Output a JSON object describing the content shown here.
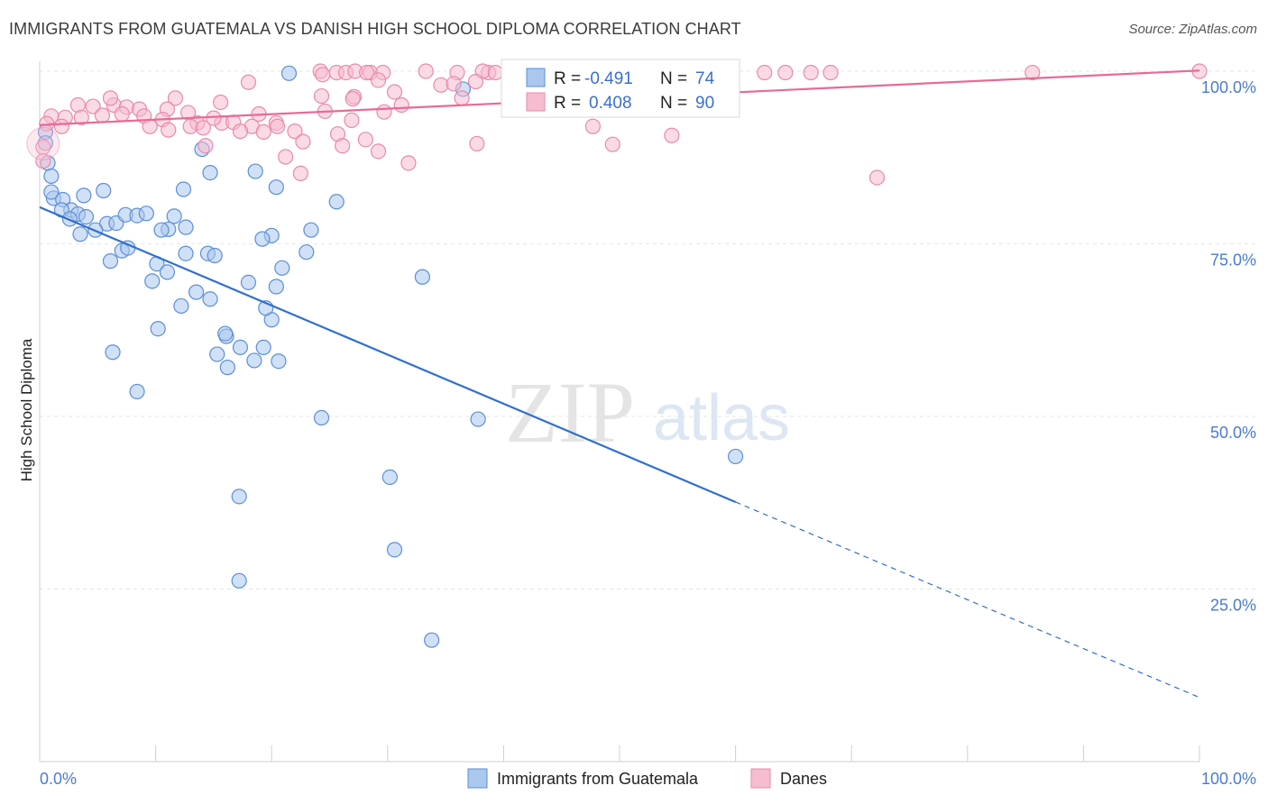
{
  "title": "IMMIGRANTS FROM GUATEMALA VS DANISH HIGH SCHOOL DIPLOMA CORRELATION CHART",
  "source": "Source: ZipAtlas.com",
  "watermark": {
    "zip": "ZIP",
    "atlas": "atlas"
  },
  "colors": {
    "blue_fill": "#aac7ee",
    "blue_stroke": "#5b8fd8",
    "blue_line": "#2f6fd0",
    "pink_fill": "#f6bcd0",
    "pink_stroke": "#e98aab",
    "pink_line": "#e86a95",
    "grid": "#e6e6e6",
    "tick_text": "#4a7bd0"
  },
  "legend": {
    "row1": {
      "r_label": "R =",
      "r_value": "-0.491",
      "n_label": "N =",
      "n_value": "74"
    },
    "row2": {
      "r_label": "R =",
      "r_value": "0.408",
      "n_label": "N =",
      "n_value": "90"
    }
  },
  "bottom_legend": [
    "Immigrants from Guatemala",
    "Danes"
  ],
  "chart_data": {
    "type": "scatter",
    "title": "IMMIGRANTS FROM GUATEMALA VS DANISH HIGH SCHOOL DIPLOMA CORRELATION CHART",
    "xlabel": "",
    "ylabel": "High School Diploma",
    "xlim": [
      0,
      100
    ],
    "ylim": [
      0,
      100
    ],
    "x_tick_labels": [
      "0.0%",
      "100.0%"
    ],
    "y_tick_labels": [
      "25.0%",
      "50.0%",
      "75.0%",
      "100.0%"
    ],
    "y_ticks": [
      25,
      50,
      75,
      100
    ],
    "series": [
      {
        "name": "Immigrants from Guatemala",
        "color": "#aac7ee",
        "r": -0.491,
        "n": 74,
        "trend": {
          "x0": 0,
          "y0": 80.3,
          "x1": 60,
          "y1": 37.6,
          "dash_x1": 100,
          "dash_y1": 9.3
        },
        "points": [
          [
            21.5,
            99.7
          ],
          [
            36.5,
            97.4
          ],
          [
            0.5,
            91.2
          ],
          [
            0.5,
            89.6
          ],
          [
            0.7,
            86.7
          ],
          [
            1.0,
            84.8
          ],
          [
            14.7,
            85.3
          ],
          [
            14.0,
            88.7
          ],
          [
            18.6,
            85.5
          ],
          [
            1.2,
            81.6
          ],
          [
            2.0,
            81.4
          ],
          [
            3.8,
            82.0
          ],
          [
            5.5,
            82.7
          ],
          [
            12.4,
            82.9
          ],
          [
            20.4,
            83.2
          ],
          [
            25.6,
            81.1
          ],
          [
            2.7,
            79.9
          ],
          [
            3.3,
            79.3
          ],
          [
            1.9,
            79.9
          ],
          [
            2.6,
            78.6
          ],
          [
            4.0,
            78.9
          ],
          [
            5.8,
            77.9
          ],
          [
            6.6,
            78.0
          ],
          [
            7.4,
            79.2
          ],
          [
            8.4,
            79.1
          ],
          [
            9.2,
            79.4
          ],
          [
            11.6,
            79.0
          ],
          [
            11.1,
            77.1
          ],
          [
            10.5,
            77.0
          ],
          [
            12.6,
            77.4
          ],
          [
            3.5,
            76.4
          ],
          [
            4.8,
            77.0
          ],
          [
            7.1,
            74.0
          ],
          [
            7.6,
            74.4
          ],
          [
            10.1,
            72.1
          ],
          [
            12.6,
            73.6
          ],
          [
            14.5,
            73.6
          ],
          [
            15.1,
            73.3
          ],
          [
            20.0,
            76.2
          ],
          [
            19.2,
            75.7
          ],
          [
            20.9,
            71.5
          ],
          [
            23.0,
            73.8
          ],
          [
            9.7,
            69.6
          ],
          [
            11.0,
            70.9
          ],
          [
            13.5,
            68.0
          ],
          [
            14.7,
            67.0
          ],
          [
            18.0,
            69.4
          ],
          [
            20.4,
            68.8
          ],
          [
            20.0,
            64.0
          ],
          [
            19.5,
            65.7
          ],
          [
            33.0,
            70.2
          ],
          [
            15.3,
            59.0
          ],
          [
            16.1,
            61.6
          ],
          [
            17.3,
            60.0
          ],
          [
            18.5,
            58.1
          ],
          [
            19.3,
            60.0
          ],
          [
            20.6,
            58.0
          ],
          [
            6.3,
            59.3
          ],
          [
            10.2,
            62.7
          ],
          [
            16.2,
            57.1
          ],
          [
            8.4,
            53.6
          ],
          [
            24.3,
            49.8
          ],
          [
            37.8,
            49.6
          ],
          [
            60.0,
            44.2
          ],
          [
            30.2,
            41.2
          ],
          [
            17.2,
            38.4
          ],
          [
            30.6,
            30.7
          ],
          [
            17.2,
            26.2
          ],
          [
            33.8,
            17.6
          ],
          [
            1.0,
            82.5
          ],
          [
            6.1,
            72.5
          ],
          [
            12.2,
            66.0
          ],
          [
            16.0,
            62.0
          ],
          [
            23.4,
            77.0
          ]
        ]
      },
      {
        "name": "Danes",
        "color": "#f6bcd0",
        "r": 0.408,
        "n": 90,
        "trend": {
          "x0": 0,
          "y0": 92.2,
          "x1": 100,
          "y1": 100.1
        },
        "points": [
          [
            24.2,
            100.0
          ],
          [
            24.4,
            99.5
          ],
          [
            25.6,
            99.8
          ],
          [
            26.4,
            99.8
          ],
          [
            27.2,
            100.0
          ],
          [
            28.5,
            99.8
          ],
          [
            28.2,
            99.8
          ],
          [
            29.6,
            99.8
          ],
          [
            33.3,
            100.0
          ],
          [
            36.0,
            99.8
          ],
          [
            38.7,
            99.8
          ],
          [
            38.2,
            100.0
          ],
          [
            39.3,
            99.8
          ],
          [
            46.3,
            99.8
          ],
          [
            46.9,
            99.8
          ],
          [
            47.1,
            99.8
          ],
          [
            52.4,
            99.8
          ],
          [
            54.9,
            99.8
          ],
          [
            57.0,
            99.8
          ],
          [
            57.1,
            99.8
          ],
          [
            62.5,
            99.8
          ],
          [
            64.3,
            99.8
          ],
          [
            66.5,
            99.8
          ],
          [
            68.2,
            99.8
          ],
          [
            85.6,
            99.8
          ],
          [
            100.0,
            100.0
          ],
          [
            34.6,
            98.0
          ],
          [
            35.7,
            98.2
          ],
          [
            37.6,
            98.5
          ],
          [
            29.2,
            98.7
          ],
          [
            30.6,
            97.0
          ],
          [
            36.4,
            96.1
          ],
          [
            27.1,
            96.3
          ],
          [
            24.3,
            96.4
          ],
          [
            27.0,
            96.0
          ],
          [
            11.7,
            96.1
          ],
          [
            15.6,
            95.5
          ],
          [
            3.3,
            95.1
          ],
          [
            4.6,
            94.9
          ],
          [
            6.4,
            95.1
          ],
          [
            7.5,
            94.8
          ],
          [
            8.6,
            94.5
          ],
          [
            11.0,
            94.5
          ],
          [
            12.8,
            94.0
          ],
          [
            1.0,
            93.5
          ],
          [
            2.2,
            93.3
          ],
          [
            3.6,
            93.3
          ],
          [
            5.4,
            93.6
          ],
          [
            7.1,
            93.8
          ],
          [
            9.0,
            93.5
          ],
          [
            10.6,
            93.0
          ],
          [
            13.6,
            92.5
          ],
          [
            15.7,
            92.5
          ],
          [
            16.7,
            92.6
          ],
          [
            18.3,
            92.0
          ],
          [
            20.4,
            92.5
          ],
          [
            24.6,
            94.2
          ],
          [
            29.7,
            94.1
          ],
          [
            31.2,
            95.1
          ],
          [
            0.6,
            92.4
          ],
          [
            1.9,
            92.0
          ],
          [
            9.5,
            92.0
          ],
          [
            11.1,
            91.5
          ],
          [
            13.0,
            92.0
          ],
          [
            14.1,
            91.8
          ],
          [
            17.3,
            91.3
          ],
          [
            19.3,
            91.2
          ],
          [
            22.0,
            91.3
          ],
          [
            25.7,
            90.9
          ],
          [
            20.5,
            92.0
          ],
          [
            22.7,
            89.8
          ],
          [
            26.1,
            89.2
          ],
          [
            28.1,
            90.1
          ],
          [
            29.2,
            88.4
          ],
          [
            31.8,
            86.7
          ],
          [
            21.2,
            87.6
          ],
          [
            22.5,
            85.2
          ],
          [
            14.3,
            89.2
          ],
          [
            37.7,
            89.5
          ],
          [
            47.7,
            92.0
          ],
          [
            49.4,
            89.4
          ],
          [
            54.5,
            90.7
          ],
          [
            72.2,
            84.6
          ],
          [
            0.3,
            89.0
          ],
          [
            0.3,
            87.0
          ],
          [
            15.0,
            93.2
          ],
          [
            18.9,
            93.8
          ],
          [
            26.9,
            92.9
          ],
          [
            6.1,
            96.1
          ],
          [
            18.0,
            98.4
          ]
        ]
      }
    ]
  }
}
